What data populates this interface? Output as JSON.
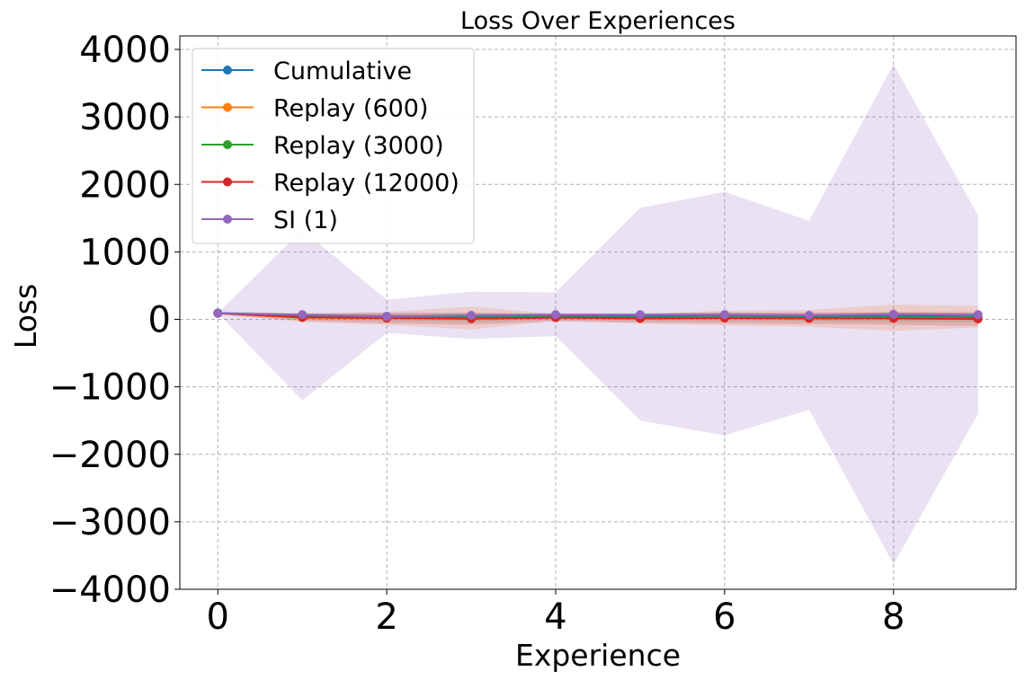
{
  "chart_data": {
    "type": "line",
    "title": "Loss Over Experiences",
    "xlabel": "Experience",
    "ylabel": "Loss",
    "xlim": [
      -0.45,
      9.45
    ],
    "ylim": [
      -4000,
      4200
    ],
    "xticks": [
      0,
      2,
      4,
      6,
      8
    ],
    "xtick_labels": [
      "0",
      "2",
      "4",
      "6",
      "8"
    ],
    "yticks": [
      -4000,
      -3000,
      -2000,
      -1000,
      0,
      1000,
      2000,
      3000,
      4000
    ],
    "ytick_labels": [
      "−4000",
      "−3000",
      "−2000",
      "−1000",
      "0",
      "1000",
      "2000",
      "3000",
      "4000"
    ],
    "grid": true,
    "legend_position": "top-left",
    "x": [
      0,
      1,
      2,
      3,
      4,
      5,
      6,
      7,
      8,
      9
    ],
    "series": [
      {
        "name": "Cumulative",
        "color": "#1f77b4",
        "values": [
          95,
          60,
          45,
          40,
          55,
          50,
          60,
          45,
          55,
          40
        ],
        "lower": [
          80,
          30,
          10,
          0,
          20,
          10,
          15,
          0,
          10,
          -5
        ],
        "upper": [
          110,
          90,
          80,
          80,
          90,
          90,
          105,
          90,
          100,
          85
        ]
      },
      {
        "name": "Replay (600)",
        "color": "#ff7f0e",
        "values": [
          90,
          25,
          15,
          20,
          30,
          10,
          20,
          15,
          25,
          20
        ],
        "lower": [
          75,
          -40,
          -80,
          -150,
          -20,
          -60,
          -90,
          -110,
          -170,
          -120
        ],
        "upper": [
          105,
          90,
          110,
          190,
          80,
          80,
          130,
          140,
          220,
          200
        ]
      },
      {
        "name": "Replay (3000)",
        "color": "#2ca02c",
        "values": [
          92,
          35,
          25,
          25,
          35,
          25,
          30,
          25,
          30,
          25
        ],
        "lower": [
          80,
          0,
          -20,
          -40,
          0,
          -20,
          -20,
          -30,
          -40,
          -40
        ],
        "upper": [
          104,
          70,
          70,
          90,
          70,
          70,
          80,
          80,
          100,
          90
        ]
      },
      {
        "name": "Replay (12000)",
        "color": "#d62728",
        "values": [
          90,
          30,
          20,
          10,
          25,
          15,
          20,
          15,
          15,
          5
        ],
        "lower": [
          75,
          -20,
          -60,
          -80,
          -30,
          -50,
          -60,
          -70,
          -80,
          -100
        ],
        "upper": [
          105,
          80,
          100,
          100,
          80,
          80,
          100,
          100,
          110,
          110
        ]
      },
      {
        "name": "SI (1)",
        "color": "#9467bd",
        "values": [
          90,
          70,
          40,
          60,
          70,
          70,
          70,
          60,
          75,
          70
        ],
        "lower": [
          90,
          -1200,
          -200,
          -290,
          -250,
          -1500,
          -1720,
          -1340,
          -3630,
          -1400
        ],
        "upper": [
          90,
          1330,
          290,
          410,
          400,
          1650,
          1890,
          1460,
          3780,
          1540
        ]
      }
    ]
  }
}
